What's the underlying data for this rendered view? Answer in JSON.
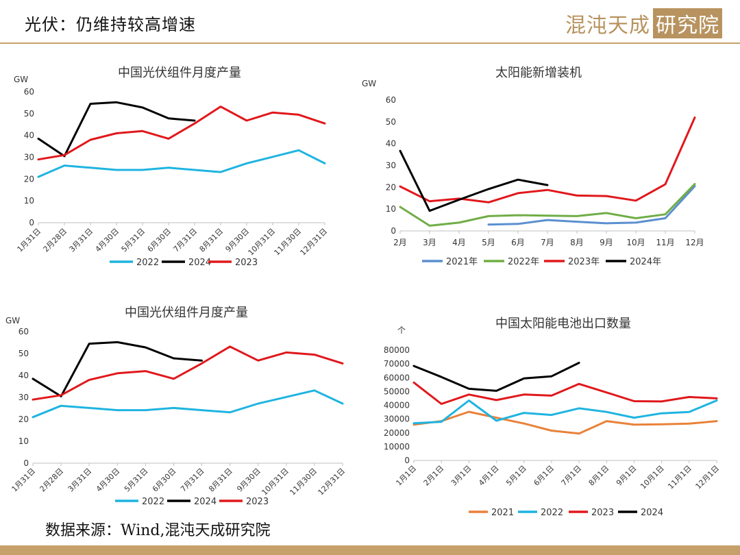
{
  "header": {
    "title": "光伏：仍维持较高增速",
    "brand_text": "混沌天成",
    "brand_boxed": "研究院"
  },
  "footer": {
    "source": "数据来源：Wind,混沌天成研究院"
  },
  "colors": {
    "gold": "#c5a06b",
    "c2022": "#1fb4e0",
    "c2024": "#000000",
    "c2023": "#e0181c",
    "y2021": "#5b8fd0",
    "y2022": "#70ad47",
    "y2023": "#e0181c",
    "y2024": "#000000",
    "b2021": "#e8823a"
  },
  "chart_data": [
    {
      "type": "line",
      "title": "中国光伏组件月度产量",
      "unit": "GW",
      "categories": [
        "1月31日",
        "2月28日",
        "3月31日",
        "4月30日",
        "5月31日",
        "6月30日",
        "7月31日",
        "8月31日",
        "9月30日",
        "10月31日",
        "11月30日",
        "12月31日"
      ],
      "ylim": [
        0,
        60
      ],
      "yticks": [
        "0",
        "10",
        "20",
        "30",
        "40",
        "50",
        "60"
      ],
      "legend_position": "bottom",
      "series": [
        {
          "name": "2022",
          "color": "#1fb4e0",
          "values": [
            21,
            26.2,
            25.2,
            24.2,
            24.2,
            25.2,
            24.2,
            23.2,
            27.2,
            30.2,
            33.2,
            27.2
          ]
        },
        {
          "name": "2024",
          "color": "#000000",
          "values": [
            38.5,
            30.5,
            54.5,
            55.2,
            52.8,
            47.8,
            46.8,
            null,
            null,
            null,
            null,
            null
          ]
        },
        {
          "name": "2023",
          "color": "#e0181c",
          "values": [
            29,
            31,
            38,
            41,
            42,
            38.5,
            45.5,
            53.2,
            46.8,
            50.5,
            49.5,
            45.5
          ]
        }
      ]
    },
    {
      "type": "line",
      "title": "太阳能新增装机",
      "unit": "GW",
      "categories": [
        "2月",
        "3月",
        "4月",
        "5月",
        "6月",
        "7月",
        "8月",
        "9月",
        "10月",
        "11月",
        "12月"
      ],
      "ylim": [
        0,
        60
      ],
      "yticks": [
        "0",
        "10",
        "20",
        "30",
        "40",
        "50",
        "60"
      ],
      "legend_position": "bottom",
      "series": [
        {
          "name": "2021年",
          "color": "#5b8fd0",
          "values": [
            null,
            null,
            null,
            2.9,
            3.2,
            5.0,
            4.2,
            3.5,
            3.8,
            5.8,
            20.5
          ]
        },
        {
          "name": "2022年",
          "color": "#70ad47",
          "values": [
            11.0,
            2.4,
            3.8,
            6.8,
            7.2,
            7.0,
            6.8,
            8.2,
            5.8,
            7.6,
            21.5
          ]
        },
        {
          "name": "2023年",
          "color": "#e0181c",
          "values": [
            20.4,
            13.6,
            14.8,
            13.1,
            17.3,
            18.8,
            16.2,
            16.0,
            13.9,
            21.4,
            52.0
          ]
        },
        {
          "name": "2024年",
          "color": "#000000",
          "values": [
            36.7,
            9.2,
            14.3,
            19.2,
            23.5,
            21.0,
            null,
            null,
            null,
            null,
            null
          ]
        }
      ]
    },
    {
      "type": "line",
      "title": "中国光伏组件月度产量",
      "unit": "GW",
      "categories": [
        "1月31日",
        "2月28日",
        "3月31日",
        "4月30日",
        "5月31日",
        "6月30日",
        "7月31日",
        "8月31日",
        "9月30日",
        "10月31日",
        "11月30日",
        "12月31日"
      ],
      "ylim": [
        0,
        60
      ],
      "yticks": [
        "0",
        "10",
        "20",
        "30",
        "40",
        "50",
        "60"
      ],
      "legend_position": "bottom",
      "series": [
        {
          "name": "2022",
          "color": "#1fb4e0",
          "values": [
            21,
            26.2,
            25.2,
            24.2,
            24.2,
            25.2,
            24.2,
            23.2,
            27.2,
            30.2,
            33.2,
            27.2
          ]
        },
        {
          "name": "2024",
          "color": "#000000",
          "values": [
            38.5,
            30.5,
            54.5,
            55.2,
            52.8,
            47.8,
            46.8,
            null,
            null,
            null,
            null,
            null
          ]
        },
        {
          "name": "2023",
          "color": "#e0181c",
          "values": [
            29,
            31,
            38,
            41,
            42,
            38.5,
            45.5,
            53.2,
            46.8,
            50.5,
            49.5,
            45.5
          ]
        }
      ]
    },
    {
      "type": "line",
      "title": "中国太阳能电池出口数量",
      "unit": "个",
      "categories": [
        "1月1日",
        "2月1日",
        "3月1日",
        "4月1日",
        "5月1日",
        "6月1日",
        "7月1日",
        "8月1日",
        "9月1日",
        "10月1日",
        "11月1日",
        "12月1日"
      ],
      "ylim": [
        0,
        80000
      ],
      "yticks": [
        "0",
        "10000",
        "20000",
        "30000",
        "40000",
        "50000",
        "60000",
        "70000",
        "80000"
      ],
      "legend_position": "bottom",
      "series": [
        {
          "name": "2021",
          "color": "#e8823a",
          "values": [
            26000,
            28500,
            35300,
            31000,
            26800,
            21600,
            19500,
            28500,
            26000,
            26200,
            26700,
            28500
          ]
        },
        {
          "name": "2022",
          "color": "#1fb4e0",
          "values": [
            27000,
            28000,
            43500,
            28800,
            34500,
            33000,
            37800,
            35200,
            31000,
            34200,
            35200,
            43500
          ]
        },
        {
          "name": "2023",
          "color": "#e0181c",
          "values": [
            56500,
            41000,
            47800,
            43800,
            47800,
            47000,
            55500,
            49300,
            43000,
            42800,
            46000,
            45000
          ]
        },
        {
          "name": "2024",
          "color": "#000000",
          "values": [
            68500,
            60500,
            52000,
            50500,
            59500,
            61000,
            70800,
            null,
            null,
            null,
            null,
            null
          ]
        }
      ]
    }
  ]
}
